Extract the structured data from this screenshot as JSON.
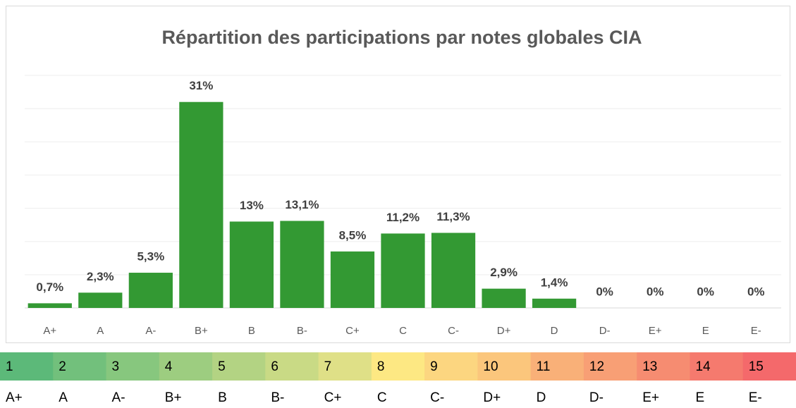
{
  "chart_data": {
    "type": "bar",
    "title": "Répartition des participations par notes globales CIA",
    "categories": [
      "A+",
      "A",
      "A-",
      "B+",
      "B",
      "B-",
      "C+",
      "C",
      "C-",
      "D+",
      "D",
      "D-",
      "E+",
      "E",
      "E-"
    ],
    "values": [
      0.7,
      2.3,
      5.3,
      31,
      13,
      13.1,
      8.5,
      11.2,
      11.3,
      2.9,
      1.4,
      0,
      0,
      0,
      0
    ],
    "value_labels": [
      "0,7%",
      "2,3%",
      "5,3%",
      "31%",
      "13%",
      "13,1%",
      "8,5%",
      "11,2%",
      "11,3%",
      "2,9%",
      "1,4%",
      "0%",
      "0%",
      "0%",
      "0%"
    ],
    "color": "#339933",
    "ylim": [
      0,
      35
    ],
    "gridlines": [
      0,
      5,
      10,
      15,
      20,
      25,
      30,
      35
    ],
    "scale": {
      "numbers": [
        1,
        2,
        3,
        4,
        5,
        6,
        7,
        8,
        9,
        10,
        11,
        12,
        13,
        14,
        15
      ],
      "labels": [
        "A+",
        "A",
        "A-",
        "B+",
        "B",
        "B-",
        "C+",
        "C",
        "C-",
        "D+",
        "D",
        "D-",
        "E+",
        "E",
        "E-"
      ],
      "colors": [
        "#5cb979",
        "#72c07c",
        "#87c77e",
        "#9dcd80",
        "#b3d383",
        "#c9da85",
        "#dfe087",
        "#fde883",
        "#fcd680",
        "#fbc67c",
        "#f9b078",
        "#f89f75",
        "#f68c71",
        "#f57a6e",
        "#f4696b"
      ]
    }
  }
}
